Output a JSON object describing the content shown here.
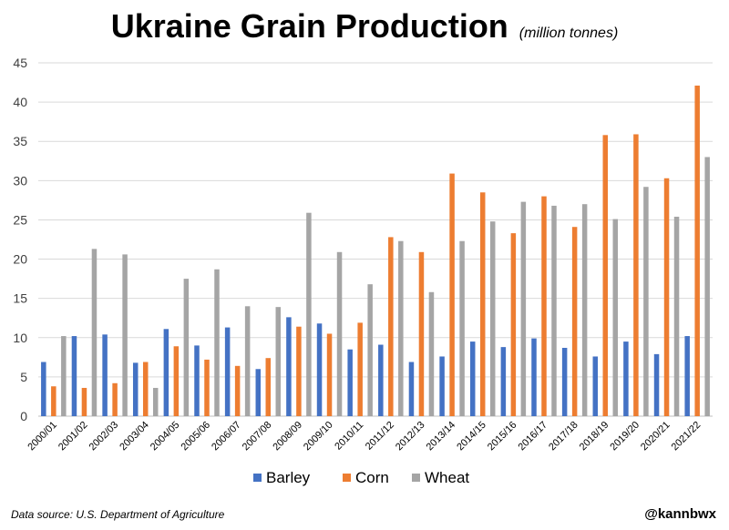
{
  "header": {
    "title": "Ukraine Grain Production",
    "subtitle": "(million tonnes)"
  },
  "footer": {
    "source": "Data source: U.S. Department of Agriculture",
    "handle": "@kannbwx"
  },
  "chart_data": {
    "type": "bar",
    "title": "Ukraine Grain Production",
    "subtitle": "(million tonnes)",
    "categories": [
      "2000/01",
      "2001/02",
      "2002/03",
      "2003/04",
      "2004/05",
      "2005/06",
      "2006/07",
      "2007/08",
      "2008/09",
      "2009/10",
      "2010/11",
      "2011/12",
      "2012/13",
      "2013/14",
      "2014/15",
      "2015/16",
      "2016/17",
      "2017/18",
      "2018/19",
      "2019/20",
      "2020/21",
      "2021/22"
    ],
    "series": [
      {
        "name": "Barley",
        "color": "#4472c4",
        "values": [
          6.9,
          10.2,
          10.4,
          6.8,
          11.1,
          9.0,
          11.3,
          6.0,
          12.6,
          11.8,
          8.5,
          9.1,
          6.9,
          7.6,
          9.5,
          8.8,
          9.9,
          8.7,
          7.6,
          9.5,
          7.9,
          10.2
        ]
      },
      {
        "name": "Corn",
        "color": "#ed7d31",
        "values": [
          3.8,
          3.6,
          4.2,
          6.9,
          8.9,
          7.2,
          6.4,
          7.4,
          11.4,
          10.5,
          11.9,
          22.8,
          20.9,
          30.9,
          28.5,
          23.3,
          28.0,
          24.1,
          35.8,
          35.9,
          30.3,
          42.1
        ]
      },
      {
        "name": "Wheat",
        "color": "#a5a5a5",
        "values": [
          10.2,
          21.3,
          20.6,
          3.6,
          17.5,
          18.7,
          14.0,
          13.9,
          25.9,
          20.9,
          16.8,
          22.3,
          15.8,
          22.3,
          24.8,
          27.3,
          26.8,
          27.0,
          25.1,
          29.2,
          25.4,
          33.0
        ]
      }
    ],
    "ylim": [
      0,
      45
    ],
    "yticks": [
      0,
      5,
      10,
      15,
      20,
      25,
      30,
      35,
      40,
      45
    ],
    "grid": true,
    "legend_position": "bottom"
  }
}
